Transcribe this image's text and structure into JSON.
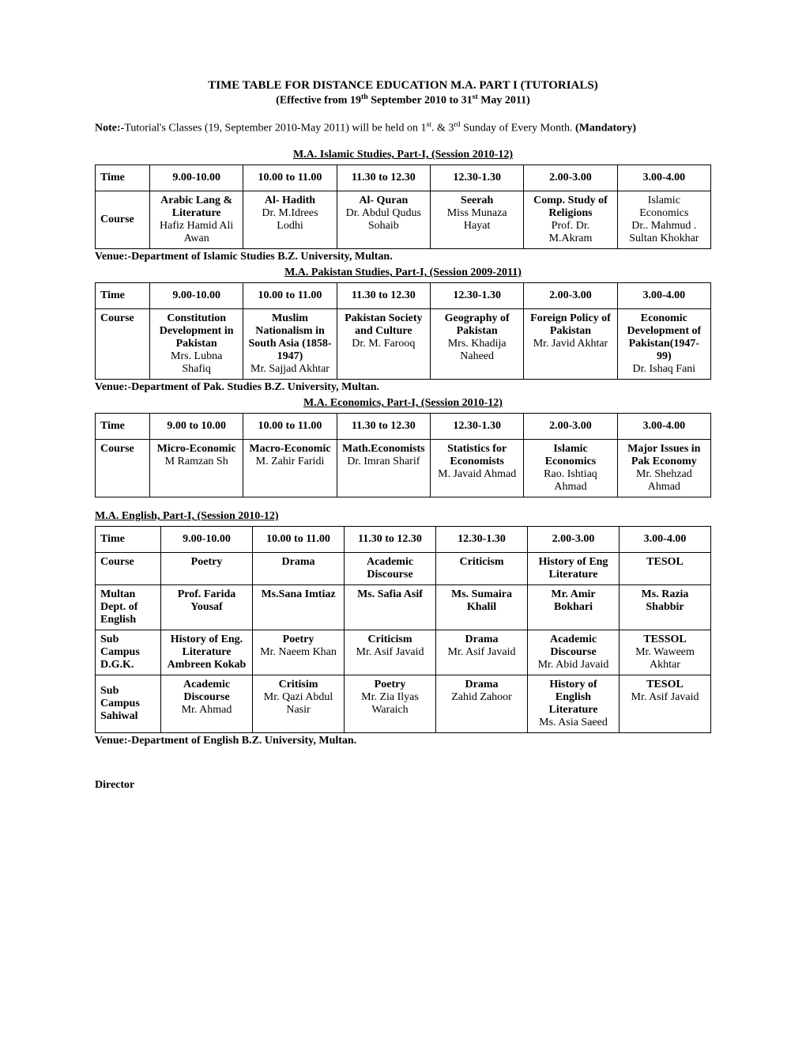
{
  "page": {
    "title": "TIME TABLE FOR DISTANCE EDUCATION M.A. PART I (TUTORIALS)",
    "subtitle_pre": "(Effective from 19",
    "subtitle_sup1": "th",
    "subtitle_mid": "  September 2010 to 31",
    "subtitle_sup2": "st",
    "subtitle_post": " May 2011)",
    "note_label": "Note:-",
    "note_body_pre": "Tutorial's Classes (19, September 2010-May 2011) will be held on 1",
    "note_sup1": "st",
    "note_mid": ". & 3",
    "note_sup2": "rd",
    "note_post": " Sunday of Every Month. ",
    "note_mandatory": "(Mandatory)",
    "director": "Director"
  },
  "time_labels": {
    "time": "Time",
    "course": "Course",
    "t1": "9.00-10.00",
    "t1b": "9.00 to 10.00",
    "t2": "10.00 to 11.00",
    "t3": "11.30 to 12.30",
    "t4": "12.30-1.30",
    "t5": "2.00-3.00",
    "t6": "3.00-4.00"
  },
  "islamic": {
    "heading": "M.A. Islamic Studies, Part-I, (Session 2010-12)",
    "venue": "Venue:-Department of Islamic Studies  B.Z. University, Multan.",
    "c1a": "Arabic Lang & Literature",
    "c1b": "Hafiz Hamid Ali Awan",
    "c2a": "Al- Hadith",
    "c2b": "Dr. M.Idrees Lodhi",
    "c3a": "Al- Quran",
    "c3b": "Dr. Abdul Qudus Sohaib",
    "c4a": "Seerah",
    "c4b": "Miss Munaza Hayat",
    "c5a": "Comp. Study of Religions",
    "c5b": "Prof. Dr. M.Akram",
    "c6a": "Islamic Economics",
    "c6b": "Dr.. Mahmud . Sultan Khokhar"
  },
  "pakstudies": {
    "heading": "M.A. Pakistan Studies, Part-I, (Session 2009-2011)",
    "venue": "Venue:-Department of Pak. Studies B.Z. University, Multan.",
    "c1a": "Constitution Development in Pakistan",
    "c1b": "Mrs. Lubna Shafiq",
    "c2a": "Muslim Nationalism in",
    "c2a2": "South Asia (1858-1947)",
    "c2b": "Mr. Sajjad Akhtar",
    "c3a": "Pakistan Society and Culture",
    "c3b": "Dr. M.  Farooq",
    "c4a": "Geography of Pakistan",
    "c4b": "Mrs. Khadija Naheed",
    "c5a": "Foreign Policy of Pakistan",
    "c5b": "Mr. Javid Akhtar",
    "c6a": "Economic Development of Pakistan(1947-99)",
    "c6b": "Dr. Ishaq Fani"
  },
  "economics": {
    "heading": "M.A. Economics, Part-I, (Session 2010-12)",
    "c1a": "Micro-Economic",
    "c1b": "M Ramzan Sh",
    "c2a": "Macro-Economic",
    "c2b": "M. Zahir Faridi",
    "c3a": "Math.Economists",
    "c3b": "Dr. Imran Sharif",
    "c4a": "Statistics for Economists",
    "c4b": "M. Javaid Ahmad",
    "c5a": "Islamic Economics",
    "c5b": "Rao. Ishtiaq Ahmad",
    "c6a": "Major Issues in Pak Economy",
    "c6b": "Mr. Shehzad Ahmad"
  },
  "english": {
    "heading": "M.A. English, Part-I, (Session 2010-12)",
    "venue": "Venue:-Department of English B.Z. University, Multan.",
    "row_course": "Course",
    "row_multan": "Multan Dept. of English",
    "row_dgk": "Sub Campus D.G.K.",
    "row_sahiwal": "Sub Campus Sahiwal",
    "course": {
      "c1": "Poetry",
      "c2": "Drama",
      "c3": "Academic Discourse",
      "c4": "Criticism",
      "c5": "History of Eng Literature",
      "c6": "TESOL"
    },
    "multan": {
      "c1": "Prof. Farida Yousaf",
      "c2": "Ms.Sana Imtiaz",
      "c3": "Ms. Safia Asif",
      "c4": "Ms. Sumaira Khalil",
      "c5": "Mr. Amir Bokhari",
      "c6": "Ms. Razia Shabbir"
    },
    "dgk": {
      "c1a": "History of Eng. Literature",
      "c1b": "Ambreen Kokab",
      "c2a": "Poetry",
      "c2b": "Mr. Naeem Khan",
      "c3a": "Criticism",
      "c3b": "Mr. Asif Javaid",
      "c4a": "Drama",
      "c4b": "Mr. Asif Javaid",
      "c5a": "Academic Discourse",
      "c5b": "Mr. Abid Javaid",
      "c6a": "TESSOL",
      "c6b": "Mr. Waweem Akhtar"
    },
    "sahiwal": {
      "c1a": "Academic Discourse",
      "c1b": "Mr. Ahmad",
      "c2a": "Critisim",
      "c2b": "Mr. Qazi Abdul Nasir",
      "c3a": "Poetry",
      "c3b": "Mr. Zia Ilyas Waraich",
      "c4a": "Drama",
      "c4b": "Zahid Zahoor",
      "c5a": "History of English Literature",
      "c5b": "Ms. Asia Saeed",
      "c6a": "TESOL",
      "c6b": "Mr. Asif Javaid"
    }
  }
}
